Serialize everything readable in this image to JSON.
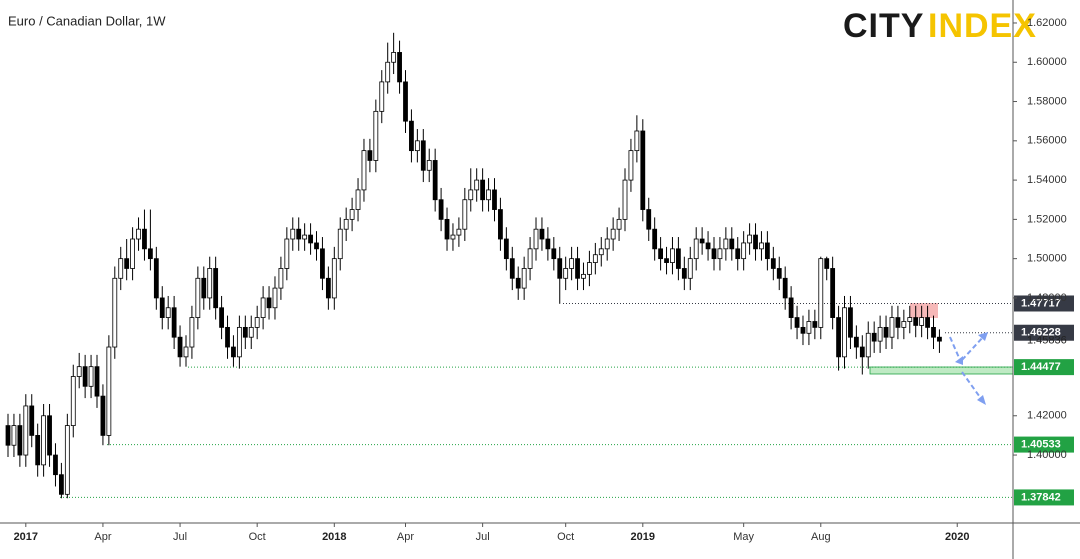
{
  "chart_data": {
    "type": "candlestick",
    "title": "Euro / Canadian Dollar, 1W",
    "logo": [
      "CITY",
      "INDEX"
    ],
    "ylim": [
      1.3654,
      1.6317
    ],
    "yticks": [
      {
        "value": 1.4,
        "label": "1.40000"
      },
      {
        "value": 1.42,
        "label": "1.42000"
      },
      {
        "value": 1.48,
        "label": "1.48000"
      },
      {
        "value": 1.5,
        "label": "1.50000"
      },
      {
        "value": 1.52,
        "label": "1.52000"
      },
      {
        "value": 1.54,
        "label": "1.54000"
      },
      {
        "value": 1.56,
        "label": "1.56000"
      },
      {
        "value": 1.58,
        "label": "1.58000"
      },
      {
        "value": 1.6,
        "label": "1.60000"
      },
      {
        "value": 1.62,
        "label": "1.62000"
      }
    ],
    "xlim": [
      -1.35,
      169.4
    ],
    "xticks": [
      {
        "value": 3,
        "label": "2017"
      },
      {
        "value": 16,
        "label": "Apr"
      },
      {
        "value": 29,
        "label": "Jul"
      },
      {
        "value": 42,
        "label": "Oct"
      },
      {
        "value": 55,
        "label": "2018"
      },
      {
        "value": 67,
        "label": "Apr"
      },
      {
        "value": 80,
        "label": "Jul"
      },
      {
        "value": 94,
        "label": "Oct"
      },
      {
        "value": 107,
        "label": "2019"
      },
      {
        "value": 124,
        "label": "May"
      },
      {
        "value": 137,
        "label": "Aug"
      },
      {
        "value": 160,
        "label": "2020"
      }
    ],
    "grid": false,
    "up_color": "#ffffff",
    "down_color": "#000000",
    "levels": [
      {
        "value": 1.47717,
        "color": "#363a45"
      },
      {
        "value": 1.46228,
        "color": "#363a45"
      },
      {
        "value": 1.44477,
        "color": "#22a244"
      },
      {
        "value": 1.40533,
        "color": "#22a244"
      },
      {
        "value": 1.37842,
        "color": "#22a244"
      }
    ],
    "last_price": 1.45836,
    "candles": [
      [
        1.415,
        1.421,
        1.399,
        1.405
      ],
      [
        1.405,
        1.421,
        1.399,
        1.415
      ],
      [
        1.415,
        1.421,
        1.394,
        1.4
      ],
      [
        1.4,
        1.431,
        1.394,
        1.425
      ],
      [
        1.425,
        1.431,
        1.404,
        1.41
      ],
      [
        1.41,
        1.416,
        1.389,
        1.395
      ],
      [
        1.395,
        1.426,
        1.389,
        1.42
      ],
      [
        1.42,
        1.426,
        1.394,
        1.4
      ],
      [
        1.4,
        1.406,
        1.384,
        1.39
      ],
      [
        1.39,
        1.396,
        1.378,
        1.38
      ],
      [
        1.38,
        1.421,
        1.378,
        1.415
      ],
      [
        1.415,
        1.446,
        1.409,
        1.44
      ],
      [
        1.44,
        1.452,
        1.434,
        1.445
      ],
      [
        1.445,
        1.451,
        1.429,
        1.435
      ],
      [
        1.435,
        1.451,
        1.429,
        1.445
      ],
      [
        1.445,
        1.451,
        1.424,
        1.43
      ],
      [
        1.43,
        1.436,
        1.405,
        1.41
      ],
      [
        1.41,
        1.461,
        1.405,
        1.455
      ],
      [
        1.455,
        1.496,
        1.449,
        1.49
      ],
      [
        1.49,
        1.506,
        1.484,
        1.5
      ],
      [
        1.5,
        1.51,
        1.489,
        1.495
      ],
      [
        1.495,
        1.516,
        1.489,
        1.51
      ],
      [
        1.51,
        1.521,
        1.504,
        1.515
      ],
      [
        1.515,
        1.525,
        1.499,
        1.505
      ],
      [
        1.505,
        1.525,
        1.494,
        1.5
      ],
      [
        1.5,
        1.506,
        1.474,
        1.48
      ],
      [
        1.48,
        1.486,
        1.464,
        1.47
      ],
      [
        1.47,
        1.481,
        1.464,
        1.475
      ],
      [
        1.475,
        1.481,
        1.454,
        1.46
      ],
      [
        1.46,
        1.466,
        1.445,
        1.45
      ],
      [
        1.45,
        1.461,
        1.445,
        1.455
      ],
      [
        1.455,
        1.476,
        1.449,
        1.47
      ],
      [
        1.47,
        1.496,
        1.464,
        1.49
      ],
      [
        1.49,
        1.496,
        1.474,
        1.48
      ],
      [
        1.48,
        1.501,
        1.474,
        1.495
      ],
      [
        1.495,
        1.501,
        1.469,
        1.475
      ],
      [
        1.475,
        1.481,
        1.459,
        1.465
      ],
      [
        1.465,
        1.471,
        1.449,
        1.455
      ],
      [
        1.455,
        1.461,
        1.445,
        1.45
      ],
      [
        1.45,
        1.471,
        1.444,
        1.465
      ],
      [
        1.465,
        1.471,
        1.454,
        1.46
      ],
      [
        1.46,
        1.471,
        1.454,
        1.465
      ],
      [
        1.465,
        1.476,
        1.459,
        1.47
      ],
      [
        1.47,
        1.486,
        1.464,
        1.48
      ],
      [
        1.48,
        1.486,
        1.469,
        1.475
      ],
      [
        1.475,
        1.491,
        1.469,
        1.485
      ],
      [
        1.485,
        1.501,
        1.479,
        1.495
      ],
      [
        1.495,
        1.516,
        1.489,
        1.51
      ],
      [
        1.51,
        1.521,
        1.504,
        1.515
      ],
      [
        1.515,
        1.521,
        1.504,
        1.51
      ],
      [
        1.51,
        1.518,
        1.504,
        1.512
      ],
      [
        1.512,
        1.518,
        1.502,
        1.508
      ],
      [
        1.508,
        1.514,
        1.499,
        1.505
      ],
      [
        1.505,
        1.511,
        1.484,
        1.49
      ],
      [
        1.49,
        1.496,
        1.474,
        1.48
      ],
      [
        1.48,
        1.506,
        1.474,
        1.5
      ],
      [
        1.5,
        1.521,
        1.494,
        1.515
      ],
      [
        1.515,
        1.526,
        1.509,
        1.52
      ],
      [
        1.52,
        1.531,
        1.514,
        1.525
      ],
      [
        1.525,
        1.541,
        1.519,
        1.535
      ],
      [
        1.535,
        1.561,
        1.529,
        1.555
      ],
      [
        1.555,
        1.561,
        1.544,
        1.55
      ],
      [
        1.55,
        1.581,
        1.544,
        1.575
      ],
      [
        1.575,
        1.596,
        1.569,
        1.59
      ],
      [
        1.59,
        1.61,
        1.584,
        1.6
      ],
      [
        1.6,
        1.615,
        1.594,
        1.605
      ],
      [
        1.605,
        1.611,
        1.584,
        1.59
      ],
      [
        1.59,
        1.596,
        1.564,
        1.57
      ],
      [
        1.57,
        1.576,
        1.549,
        1.555
      ],
      [
        1.555,
        1.566,
        1.549,
        1.56
      ],
      [
        1.56,
        1.566,
        1.539,
        1.545
      ],
      [
        1.545,
        1.556,
        1.539,
        1.55
      ],
      [
        1.55,
        1.556,
        1.524,
        1.53
      ],
      [
        1.53,
        1.536,
        1.514,
        1.52
      ],
      [
        1.52,
        1.526,
        1.504,
        1.51
      ],
      [
        1.51,
        1.518,
        1.504,
        1.512
      ],
      [
        1.512,
        1.521,
        1.506,
        1.515
      ],
      [
        1.515,
        1.536,
        1.509,
        1.53
      ],
      [
        1.53,
        1.546,
        1.524,
        1.535
      ],
      [
        1.535,
        1.546,
        1.529,
        1.54
      ],
      [
        1.54,
        1.546,
        1.524,
        1.53
      ],
      [
        1.53,
        1.541,
        1.524,
        1.535
      ],
      [
        1.535,
        1.541,
        1.519,
        1.525
      ],
      [
        1.525,
        1.531,
        1.504,
        1.51
      ],
      [
        1.51,
        1.516,
        1.494,
        1.5
      ],
      [
        1.5,
        1.506,
        1.484,
        1.49
      ],
      [
        1.49,
        1.496,
        1.479,
        1.485
      ],
      [
        1.485,
        1.501,
        1.479,
        1.495
      ],
      [
        1.495,
        1.511,
        1.489,
        1.505
      ],
      [
        1.505,
        1.521,
        1.499,
        1.515
      ],
      [
        1.515,
        1.521,
        1.504,
        1.51
      ],
      [
        1.51,
        1.516,
        1.499,
        1.505
      ],
      [
        1.505,
        1.511,
        1.494,
        1.5
      ],
      [
        1.5,
        1.506,
        1.477,
        1.49
      ],
      [
        1.49,
        1.501,
        1.484,
        1.495
      ],
      [
        1.495,
        1.506,
        1.489,
        1.5
      ],
      [
        1.5,
        1.506,
        1.484,
        1.49
      ],
      [
        1.49,
        1.498,
        1.484,
        1.492
      ],
      [
        1.492,
        1.504,
        1.486,
        1.498
      ],
      [
        1.498,
        1.508,
        1.492,
        1.502
      ],
      [
        1.502,
        1.511,
        1.496,
        1.505
      ],
      [
        1.505,
        1.516,
        1.499,
        1.51
      ],
      [
        1.51,
        1.521,
        1.504,
        1.515
      ],
      [
        1.515,
        1.526,
        1.509,
        1.52
      ],
      [
        1.52,
        1.546,
        1.514,
        1.54
      ],
      [
        1.54,
        1.561,
        1.534,
        1.555
      ],
      [
        1.555,
        1.573,
        1.549,
        1.565
      ],
      [
        1.565,
        1.571,
        1.519,
        1.525
      ],
      [
        1.525,
        1.531,
        1.509,
        1.515
      ],
      [
        1.515,
        1.521,
        1.499,
        1.505
      ],
      [
        1.505,
        1.511,
        1.494,
        1.5
      ],
      [
        1.5,
        1.506,
        1.492,
        1.498
      ],
      [
        1.498,
        1.511,
        1.492,
        1.505
      ],
      [
        1.505,
        1.511,
        1.489,
        1.495
      ],
      [
        1.495,
        1.501,
        1.484,
        1.49
      ],
      [
        1.49,
        1.506,
        1.484,
        1.5
      ],
      [
        1.5,
        1.516,
        1.494,
        1.51
      ],
      [
        1.51,
        1.516,
        1.502,
        1.508
      ],
      [
        1.508,
        1.514,
        1.499,
        1.505
      ],
      [
        1.505,
        1.511,
        1.494,
        1.5
      ],
      [
        1.5,
        1.511,
        1.494,
        1.505
      ],
      [
        1.505,
        1.516,
        1.499,
        1.51
      ],
      [
        1.51,
        1.516,
        1.499,
        1.505
      ],
      [
        1.505,
        1.511,
        1.494,
        1.5
      ],
      [
        1.5,
        1.514,
        1.494,
        1.508
      ],
      [
        1.508,
        1.518,
        1.502,
        1.512
      ],
      [
        1.512,
        1.518,
        1.499,
        1.505
      ],
      [
        1.505,
        1.514,
        1.499,
        1.508
      ],
      [
        1.508,
        1.514,
        1.494,
        1.5
      ],
      [
        1.5,
        1.506,
        1.489,
        1.495
      ],
      [
        1.495,
        1.501,
        1.484,
        1.49
      ],
      [
        1.49,
        1.496,
        1.474,
        1.48
      ],
      [
        1.48,
        1.486,
        1.464,
        1.47
      ],
      [
        1.47,
        1.476,
        1.459,
        1.465
      ],
      [
        1.465,
        1.471,
        1.456,
        1.462
      ],
      [
        1.462,
        1.474,
        1.456,
        1.468
      ],
      [
        1.468,
        1.474,
        1.459,
        1.465
      ],
      [
        1.465,
        1.501,
        1.459,
        1.5
      ],
      [
        1.5,
        1.501,
        1.489,
        1.495
      ],
      [
        1.495,
        1.501,
        1.464,
        1.47
      ],
      [
        1.47,
        1.476,
        1.443,
        1.45
      ],
      [
        1.45,
        1.481,
        1.444,
        1.475
      ],
      [
        1.475,
        1.481,
        1.454,
        1.46
      ],
      [
        1.46,
        1.466,
        1.449,
        1.455
      ],
      [
        1.455,
        1.461,
        1.441,
        1.45
      ],
      [
        1.45,
        1.468,
        1.444,
        1.462
      ],
      [
        1.462,
        1.468,
        1.452,
        1.458
      ],
      [
        1.458,
        1.471,
        1.452,
        1.465
      ],
      [
        1.465,
        1.471,
        1.454,
        1.46
      ],
      [
        1.46,
        1.476,
        1.454,
        1.47
      ],
      [
        1.47,
        1.476,
        1.459,
        1.465
      ],
      [
        1.465,
        1.474,
        1.459,
        1.468
      ],
      [
        1.468,
        1.476,
        1.462,
        1.47
      ],
      [
        1.47,
        1.476,
        1.46,
        1.466
      ],
      [
        1.466,
        1.476,
        1.46,
        1.47
      ],
      [
        1.47,
        1.476,
        1.459,
        1.465
      ],
      [
        1.465,
        1.471,
        1.454,
        1.46
      ],
      [
        1.46,
        1.464,
        1.452,
        1.458
      ]
    ]
  }
}
